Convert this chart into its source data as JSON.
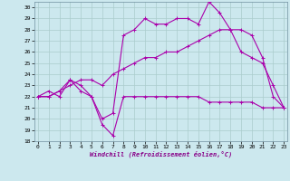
{
  "xlabel": "Windchill (Refroidissement éolien,°C)",
  "x_ticks": [
    0,
    1,
    2,
    3,
    4,
    5,
    6,
    7,
    8,
    9,
    10,
    11,
    12,
    13,
    14,
    15,
    16,
    17,
    18,
    19,
    20,
    21,
    22,
    23
  ],
  "ylim": [
    18,
    30.5
  ],
  "yticks": [
    18,
    19,
    20,
    21,
    22,
    23,
    24,
    25,
    26,
    27,
    28,
    29,
    30
  ],
  "xlim": [
    -0.3,
    23.3
  ],
  "background_color": "#cce8ee",
  "grid_color": "#aacccc",
  "line_color": "#aa00aa",
  "series1": {
    "x": [
      0,
      1,
      2,
      3,
      4,
      5,
      6,
      7,
      8,
      9,
      10,
      11,
      12,
      13,
      14,
      15,
      16,
      17,
      18,
      19,
      20,
      21,
      22,
      23
    ],
    "y": [
      22,
      22.5,
      22,
      23.5,
      22.5,
      22,
      19.5,
      18.5,
      22,
      22,
      22,
      22,
      22,
      22,
      22,
      22,
      21.5,
      21.5,
      21.5,
      21.5,
      21.5,
      21,
      21,
      21
    ]
  },
  "series2": {
    "x": [
      0,
      1,
      2,
      3,
      4,
      5,
      6,
      7,
      8,
      9,
      10,
      11,
      12,
      13,
      14,
      15,
      16,
      17,
      18,
      19,
      20,
      21,
      22,
      23
    ],
    "y": [
      22,
      22,
      22.5,
      23,
      23.5,
      23.5,
      23,
      24,
      24.5,
      25,
      25.5,
      25.5,
      26,
      26,
      26.5,
      27,
      27.5,
      28,
      28,
      28,
      27.5,
      25.5,
      22,
      21
    ]
  },
  "series3": {
    "x": [
      0,
      1,
      2,
      3,
      4,
      5,
      6,
      7,
      8,
      9,
      10,
      11,
      12,
      13,
      14,
      15,
      16,
      17,
      18,
      19,
      20,
      21,
      22,
      23
    ],
    "y": [
      22,
      22,
      22.5,
      23.5,
      23,
      22,
      20,
      20.5,
      27.5,
      28,
      29,
      28.5,
      28.5,
      29,
      29,
      28.5,
      30.5,
      29.5,
      28,
      26,
      25.5,
      25,
      23,
      21
    ]
  }
}
